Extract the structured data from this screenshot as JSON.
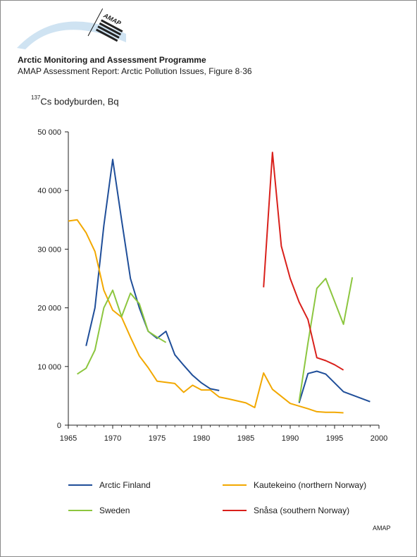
{
  "header": {
    "logo_text": "AMAP",
    "org_title": "Arctic Monitoring and Assessment Programme",
    "report_title": "AMAP Assessment Report: Arctic Pollution Issues, Figure 8·36"
  },
  "axis": {
    "y_unit_sup": "137",
    "y_unit_text": "Cs bodyburden, Bq"
  },
  "chart_data": {
    "type": "line",
    "title": "",
    "xlabel": "",
    "ylabel": "137Cs bodyburden, Bq",
    "xlim": [
      1965,
      2000
    ],
    "ylim": [
      0,
      50000
    ],
    "x_ticks": [
      1965,
      1970,
      1975,
      1980,
      1985,
      1990,
      1995,
      2000
    ],
    "y_ticks": [
      0,
      10000,
      20000,
      30000,
      40000,
      50000
    ],
    "y_tick_labels": [
      "0",
      "10 000",
      "20 000",
      "30 000",
      "40 000",
      "50 000"
    ],
    "grid": false,
    "legend_position": "bottom",
    "series": [
      {
        "name": "Arctic Finland",
        "color": "#1f4e99",
        "points": [
          [
            1967,
            13500
          ],
          [
            1968,
            20000
          ],
          [
            1969,
            34000
          ],
          [
            1970,
            45300
          ],
          [
            1971,
            35000
          ],
          [
            1972,
            25000
          ],
          [
            1973,
            20000
          ],
          [
            1974,
            16000
          ],
          [
            1975,
            14800
          ],
          [
            1976,
            16000
          ],
          [
            1977,
            12000
          ],
          [
            1978,
            10200
          ],
          [
            1979,
            8500
          ],
          [
            1980,
            7200
          ],
          [
            1981,
            6200
          ],
          [
            1982,
            5900
          ]
        ]
      },
      {
        "name": "Arctic Finland",
        "color": "#1f4e99",
        "points": [
          [
            1991,
            3800
          ],
          [
            1992,
            8800
          ],
          [
            1993,
            9200
          ],
          [
            1994,
            8700
          ],
          [
            1996,
            5700
          ],
          [
            1999,
            4000
          ]
        ]
      },
      {
        "name": "Kautekeino (northern Norway)",
        "color": "#f2a800",
        "points": [
          [
            1965,
            34800
          ],
          [
            1966,
            35000
          ],
          [
            1967,
            32800
          ],
          [
            1968,
            29600
          ],
          [
            1969,
            23000
          ],
          [
            1970,
            19600
          ],
          [
            1971,
            18400
          ],
          [
            1972,
            15000
          ],
          [
            1973,
            11800
          ],
          [
            1974,
            9800
          ],
          [
            1975,
            7500
          ],
          [
            1976,
            7300
          ],
          [
            1977,
            7100
          ],
          [
            1978,
            5600
          ],
          [
            1979,
            6800
          ],
          [
            1980,
            6000
          ],
          [
            1981,
            6000
          ],
          [
            1982,
            4800
          ],
          [
            1983,
            4500
          ],
          [
            1985,
            3800
          ],
          [
            1986,
            3000
          ],
          [
            1987,
            8900
          ],
          [
            1988,
            6100
          ],
          [
            1990,
            3700
          ],
          [
            1992,
            2800
          ],
          [
            1993,
            2300
          ],
          [
            1994,
            2200
          ],
          [
            1995,
            2200
          ],
          [
            1996,
            2100
          ]
        ]
      },
      {
        "name": "Sweden",
        "color": "#8cc63f",
        "points": [
          [
            1966,
            8700
          ],
          [
            1967,
            9700
          ],
          [
            1968,
            12800
          ],
          [
            1969,
            20000
          ],
          [
            1970,
            23000
          ],
          [
            1971,
            18500
          ],
          [
            1972,
            22500
          ],
          [
            1973,
            20700
          ],
          [
            1974,
            16000
          ],
          [
            1975,
            15000
          ],
          [
            1976,
            14100
          ]
        ]
      },
      {
        "name": "Sweden",
        "color": "#8cc63f",
        "points": [
          [
            1991,
            4000
          ],
          [
            1992,
            14000
          ],
          [
            1993,
            23300
          ],
          [
            1994,
            25000
          ],
          [
            1996,
            17200
          ],
          [
            1997,
            25200
          ]
        ]
      },
      {
        "name": "Snåsa (southern Norway)",
        "color": "#d9201b",
        "points": [
          [
            1987,
            23500
          ],
          [
            1988,
            46500
          ],
          [
            1989,
            30500
          ],
          [
            1990,
            25000
          ],
          [
            1991,
            21000
          ],
          [
            1992,
            18000
          ],
          [
            1993,
            11500
          ],
          [
            1994,
            11000
          ],
          [
            1995,
            10300
          ],
          [
            1996,
            9400
          ]
        ]
      }
    ]
  },
  "legend": [
    {
      "label": "Arctic Finland",
      "color": "#1f4e99"
    },
    {
      "label": "Kautekeino (northern Norway)",
      "color": "#f2a800"
    },
    {
      "label": "Sweden",
      "color": "#8cc63f"
    },
    {
      "label": "Snåsa (southern Norway)",
      "color": "#d9201b"
    }
  ],
  "footer": {
    "credit": "AMAP"
  }
}
